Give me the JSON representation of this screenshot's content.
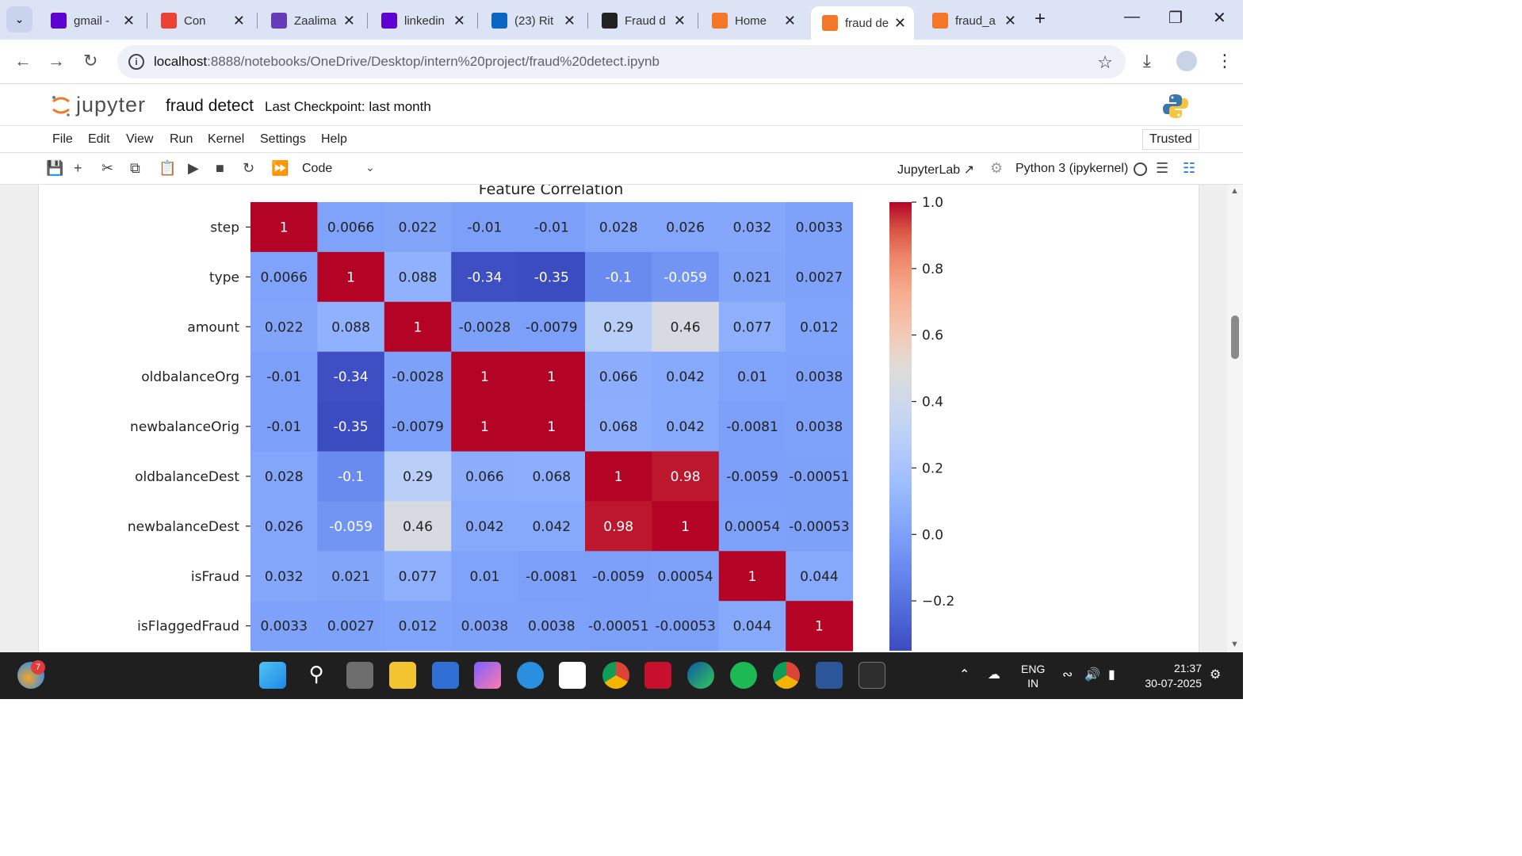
{
  "browser": {
    "tabs": [
      {
        "label": "gmail -",
        "icon": "yahoo-icon",
        "color": "#5f01d1"
      },
      {
        "label": "Con",
        "icon": "gmail-icon",
        "color": "#ea4335"
      },
      {
        "label": "Zaalima",
        "icon": "forms-icon",
        "color": "#673ab7"
      },
      {
        "label": "linkedin",
        "icon": "yahoo-icon",
        "color": "#5f01d1"
      },
      {
        "label": "(23) Rit",
        "icon": "linkedin-icon",
        "color": "#0a66c2"
      },
      {
        "label": "Fraud d",
        "icon": "chatgpt-icon",
        "color": "#222222"
      },
      {
        "label": "Home",
        "icon": "jupyter-icon",
        "color": "#f37726"
      },
      {
        "label": "fraud de",
        "icon": "notebook-icon",
        "color": "#f37726"
      },
      {
        "label": "fraud_a",
        "icon": "file-icon",
        "color": "#f37726"
      }
    ],
    "url_host": "localhost",
    "url_path": ":8888/notebooks/OneDrive/Desktop/intern%20project/fraud%20detect.ipynb"
  },
  "jupyter": {
    "logo_text": "jupyter",
    "notebook_title": "fraud detect",
    "checkpoint": "Last Checkpoint: last month",
    "menu": [
      "File",
      "Edit",
      "View",
      "Run",
      "Kernel",
      "Settings",
      "Help"
    ],
    "trusted": "Trusted",
    "cell_type": "Code",
    "jupyterlab_link": "JupyterLab",
    "kernel": "Python 3 (ipykernel)"
  },
  "chart_data": {
    "type": "heatmap",
    "title": "Feature Correlation",
    "labels": [
      "step",
      "type",
      "amount",
      "oldbalanceOrg",
      "newbalanceOrig",
      "oldbalanceDest",
      "newbalanceDest",
      "isFraud",
      "isFlaggedFraud"
    ],
    "values": [
      [
        "1",
        "0.0066",
        "0.022",
        "-0.01",
        "-0.01",
        "0.028",
        "0.026",
        "0.032",
        "0.0033"
      ],
      [
        "0.0066",
        "1",
        "0.088",
        "-0.34",
        "-0.35",
        "-0.1",
        "-0.059",
        "0.021",
        "0.0027"
      ],
      [
        "0.022",
        "0.088",
        "1",
        "-0.0028",
        "-0.0079",
        "0.29",
        "0.46",
        "0.077",
        "0.012"
      ],
      [
        "-0.01",
        "-0.34",
        "-0.0028",
        "1",
        "1",
        "0.066",
        "0.042",
        "0.01",
        "0.0038"
      ],
      [
        "-0.01",
        "-0.35",
        "-0.0079",
        "1",
        "1",
        "0.068",
        "0.042",
        "-0.0081",
        "0.0038"
      ],
      [
        "0.028",
        "-0.1",
        "0.29",
        "0.066",
        "0.068",
        "1",
        "0.98",
        "-0.0059",
        "-0.00051"
      ],
      [
        "0.026",
        "-0.059",
        "0.46",
        "0.042",
        "0.042",
        "0.98",
        "1",
        "0.00054",
        "-0.00053"
      ],
      [
        "0.032",
        "0.021",
        "0.077",
        "0.01",
        "-0.0081",
        "-0.0059",
        "0.00054",
        "1",
        "0.044"
      ],
      [
        "0.0033",
        "0.0027",
        "0.012",
        "0.0038",
        "0.0038",
        "-0.00051",
        "-0.00053",
        "0.044",
        "1"
      ]
    ],
    "colormap": "coolwarm",
    "vmin": -0.35,
    "vmax": 1.0,
    "colorbar_ticks": [
      "1.0",
      "0.8",
      "0.6",
      "0.4",
      "0.2",
      "0.0",
      "−0.2"
    ]
  },
  "taskbar": {
    "badge": "7",
    "lang_line1": "ENG",
    "lang_line2": "IN",
    "time": "21:37",
    "date": "30-07-2025"
  }
}
